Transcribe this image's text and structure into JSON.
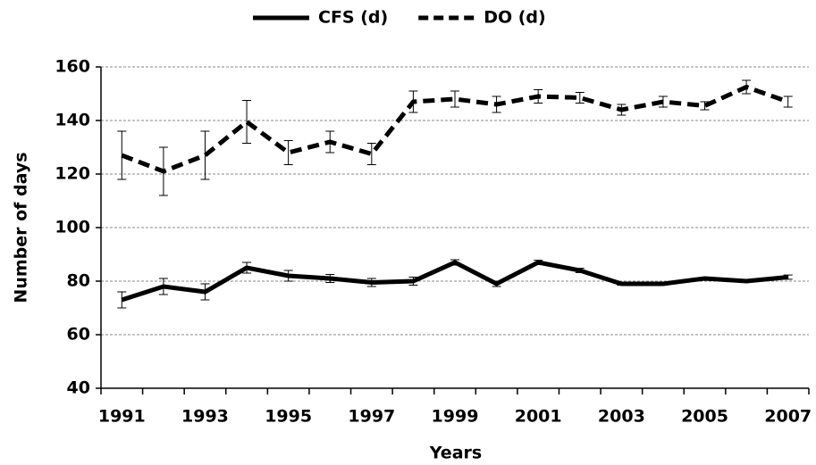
{
  "chart_data": {
    "type": "line",
    "x_label": "Years",
    "y_label": "Number of days",
    "categories": [
      "1991",
      null,
      "1993",
      null,
      "1995",
      null,
      "1997",
      null,
      "1999",
      null,
      "2001",
      null,
      "2003",
      null,
      "2005",
      null,
      "2007"
    ],
    "series": [
      {
        "name": "CFS (d)",
        "color": "#000000",
        "dashed": false,
        "values": [
          73,
          78,
          76,
          85,
          82,
          81,
          79.5,
          80,
          87,
          79,
          87,
          84,
          79,
          79,
          81,
          80,
          81.5
        ],
        "errors": [
          3,
          3,
          3,
          2,
          2,
          1.5,
          1.5,
          1.5,
          1,
          1,
          0.8,
          0.8,
          0.5,
          0.5,
          0.5,
          0.5,
          0.8
        ]
      },
      {
        "name": "DO (d)",
        "color": "#000000",
        "dashed": true,
        "values": [
          127,
          121,
          127,
          139.5,
          128,
          132,
          127.5,
          147,
          148,
          146,
          149,
          148.5,
          144,
          147,
          145.5,
          152.5,
          147
        ],
        "errors": [
          9,
          9,
          9,
          8,
          4.5,
          4,
          4,
          4,
          3,
          3,
          2.5,
          2,
          2,
          2,
          1.5,
          2.5,
          2
        ]
      }
    ],
    "ylim": [
      40,
      160
    ],
    "yticks": [
      40,
      60,
      80,
      100,
      120,
      140,
      160
    ],
    "grid": true,
    "legend": "top"
  }
}
